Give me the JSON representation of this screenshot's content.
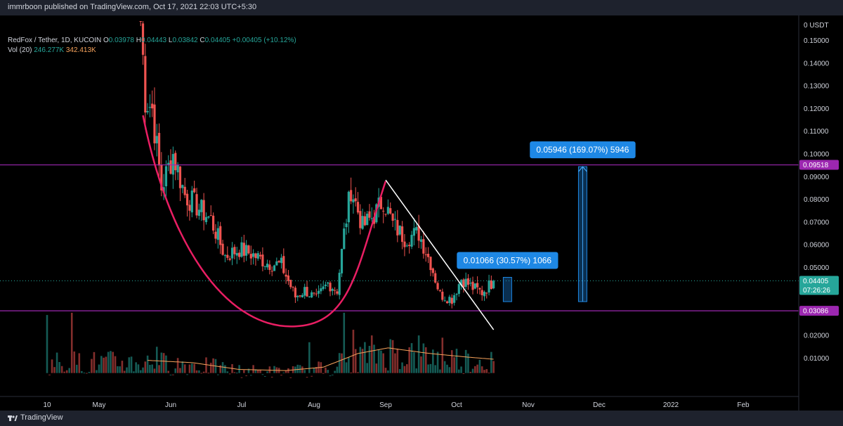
{
  "header": {
    "publish_text": "immrboon published on TradingView.com, Oct 17, 2021 22:03 UTC+5:30"
  },
  "footer": {
    "brand": "TradingView"
  },
  "legend": {
    "symbol": "RedFox / Tether, 1D, KUCOIN",
    "o_label": "O",
    "o": "0.03978",
    "h_label": "H",
    "h": "0.04443",
    "l_label": "L",
    "l": "0.03842",
    "c_label": "C",
    "c": "0.04405",
    "change": "+0.00405 (+10.12%)",
    "vol_label": "Vol (20)",
    "vol": "246.277K",
    "vol_ma": "342.413K"
  },
  "colors": {
    "up": "#26a69a",
    "down": "#ef5350",
    "line": "#9c27b0",
    "cup": "#e91e63",
    "measure": "#1e88e5",
    "vol_ma": "#f7a35c",
    "trend": "#ffffff"
  },
  "chart_data": {
    "type": "candlestick",
    "quote_currency": "USDT",
    "y_axis_ticks": [
      "0.15000",
      "0.14000",
      "0.13000",
      "0.12000",
      "0.11000",
      "0.10000",
      "0.09000",
      "0.08000",
      "0.07000",
      "0.06000",
      "0.05000",
      "0.02000",
      "0.01000"
    ],
    "ylim": [
      0.0,
      0.16
    ],
    "x_axis_ticks": [
      "10",
      "May",
      "Jun",
      "Jul",
      "Aug",
      "Sep",
      "Oct",
      "Nov",
      "Dec",
      "2022",
      "Feb"
    ],
    "price_lines": [
      {
        "label": "0.09518",
        "value": 0.09518
      },
      {
        "label": "0.03086",
        "value": 0.03086
      }
    ],
    "last_price": {
      "label": "0.04405",
      "value": 0.04405,
      "countdown": "07:26:26"
    },
    "measures": [
      {
        "label": "0.01066 (30.57%) 1066",
        "from": 0.0349,
        "to": 0.0456,
        "date": "2021-10-23"
      },
      {
        "label": "0.05946 (169.07%) 5946",
        "from": 0.0349,
        "to": 0.0944,
        "date": "2021-11-24"
      }
    ],
    "trend_line": {
      "from_date": "2021-09-01",
      "from_price": 0.0885,
      "to_date": "2021-10-17",
      "to_price": 0.0225
    },
    "cup_curve": {
      "start_date": "2021-05-20",
      "start_price": 0.117,
      "bottom_date": "2021-07-24",
      "bottom_price": 0.024,
      "end_date": "2021-09-01",
      "end_price": 0.088
    },
    "price_path": [
      [
        "2021-05-19",
        0.16
      ],
      [
        "2021-05-21",
        0.125
      ],
      [
        "2021-05-24",
        0.12
      ],
      [
        "2021-05-28",
        0.085
      ],
      [
        "2021-06-02",
        0.1
      ],
      [
        "2021-06-07",
        0.082
      ],
      [
        "2021-06-12",
        0.077
      ],
      [
        "2021-06-18",
        0.071
      ],
      [
        "2021-06-24",
        0.055
      ],
      [
        "2021-06-30",
        0.058
      ],
      [
        "2021-07-05",
        0.056
      ],
      [
        "2021-07-12",
        0.052
      ],
      [
        "2021-07-18",
        0.051
      ],
      [
        "2021-07-24",
        0.037
      ],
      [
        "2021-07-28",
        0.04
      ],
      [
        "2021-08-02",
        0.036
      ],
      [
        "2021-08-07",
        0.043
      ],
      [
        "2021-08-11",
        0.04
      ],
      [
        "2021-08-14",
        0.065
      ],
      [
        "2021-08-17",
        0.085
      ],
      [
        "2021-08-22",
        0.068
      ],
      [
        "2021-08-27",
        0.073
      ],
      [
        "2021-08-31",
        0.08
      ],
      [
        "2021-09-04",
        0.069
      ],
      [
        "2021-09-09",
        0.063
      ],
      [
        "2021-09-15",
        0.065
      ],
      [
        "2021-09-20",
        0.052
      ],
      [
        "2021-09-24",
        0.038
      ],
      [
        "2021-09-29",
        0.036
      ],
      [
        "2021-10-03",
        0.045
      ],
      [
        "2021-10-08",
        0.041
      ],
      [
        "2021-10-12",
        0.039
      ],
      [
        "2021-10-17",
        0.044
      ]
    ],
    "volume_ma_path": [
      [
        "2021-05-22",
        0.009
      ],
      [
        "2021-06-10",
        0.008
      ],
      [
        "2021-06-30",
        0.005
      ],
      [
        "2021-07-20",
        0.0045
      ],
      [
        "2021-08-05",
        0.006
      ],
      [
        "2021-08-20",
        0.012
      ],
      [
        "2021-09-02",
        0.0145
      ],
      [
        "2021-09-20",
        0.012
      ],
      [
        "2021-10-05",
        0.0105
      ],
      [
        "2021-10-17",
        0.0095
      ]
    ],
    "volume_spikes": [
      [
        "2021-04-10",
        0.029
      ],
      [
        "2021-04-20",
        0.03
      ],
      [
        "2021-05-26",
        0.015
      ],
      [
        "2021-07-30",
        0.017
      ],
      [
        "2021-08-14",
        0.03
      ],
      [
        "2021-08-18",
        0.0225
      ],
      [
        "2021-08-26",
        0.02
      ],
      [
        "2021-09-15",
        0.02
      ],
      [
        "2021-09-25",
        0.019
      ]
    ]
  }
}
